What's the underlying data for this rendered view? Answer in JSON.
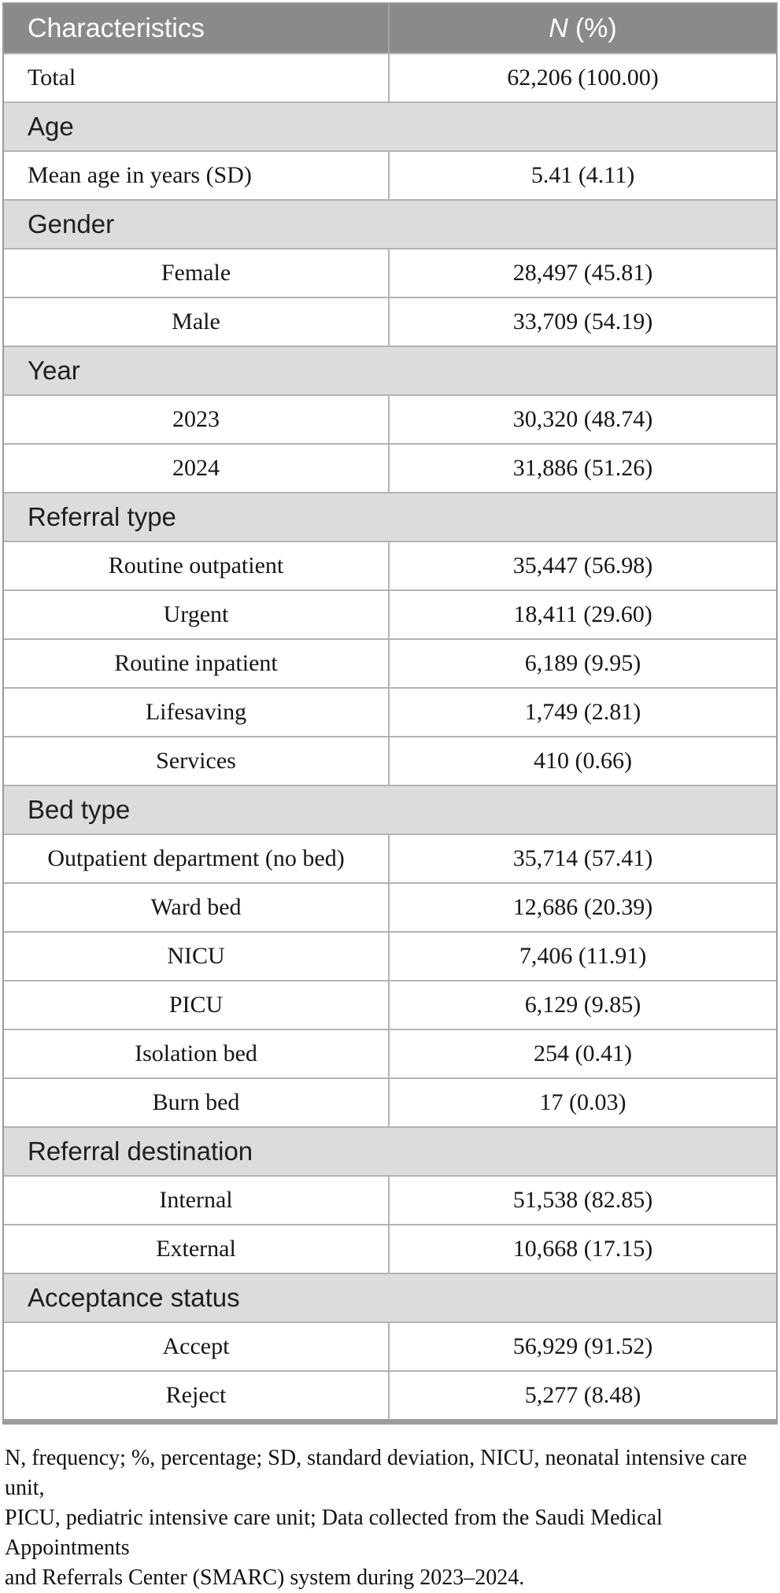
{
  "table": {
    "header": {
      "characteristics_label": "Characteristics",
      "value_label_italic": "N",
      "value_label_rest": "(%)"
    },
    "rows": [
      {
        "type": "data",
        "level": 0,
        "label": "Total",
        "value": "62,206 (100.00)"
      },
      {
        "type": "section",
        "label": "Age"
      },
      {
        "type": "data",
        "level": 0,
        "label": "Mean age in years (SD)",
        "value": "5.41 (4.11)"
      },
      {
        "type": "section",
        "label": "Gender"
      },
      {
        "type": "data",
        "level": 1,
        "label": "Female",
        "value": "28,497 (45.81)"
      },
      {
        "type": "data",
        "level": 1,
        "label": "Male",
        "value": "33,709 (54.19)"
      },
      {
        "type": "section",
        "label": "Year"
      },
      {
        "type": "data",
        "level": 1,
        "label": "2023",
        "value": "30,320 (48.74)"
      },
      {
        "type": "data",
        "level": 1,
        "label": "2024",
        "value": "31,886 (51.26)"
      },
      {
        "type": "section",
        "label": "Referral type"
      },
      {
        "type": "data",
        "level": 1,
        "label": "Routine outpatient",
        "value": "35,447 (56.98)"
      },
      {
        "type": "data",
        "level": 1,
        "label": "Urgent",
        "value": "18,411 (29.60)"
      },
      {
        "type": "data",
        "level": 1,
        "label": "Routine inpatient",
        "value": "6,189 (9.95)"
      },
      {
        "type": "data",
        "level": 1,
        "label": "Lifesaving",
        "value": "1,749 (2.81)"
      },
      {
        "type": "data",
        "level": 1,
        "label": "Services",
        "value": "410 (0.66)"
      },
      {
        "type": "section",
        "label": "Bed type"
      },
      {
        "type": "data",
        "level": 1,
        "label": "Outpatient department (no bed)",
        "value": "35,714 (57.41)"
      },
      {
        "type": "data",
        "level": 1,
        "label": "Ward bed",
        "value": "12,686 (20.39)"
      },
      {
        "type": "data",
        "level": 1,
        "label": "NICU",
        "value": "7,406 (11.91)"
      },
      {
        "type": "data",
        "level": 1,
        "label": "PICU",
        "value": "6,129 (9.85)"
      },
      {
        "type": "data",
        "level": 1,
        "label": "Isolation bed",
        "value": "254 (0.41)"
      },
      {
        "type": "data",
        "level": 1,
        "label": "Burn bed",
        "value": "17 (0.03)"
      },
      {
        "type": "section",
        "label": "Referral destination"
      },
      {
        "type": "data",
        "level": 1,
        "label": "Internal",
        "value": "51,538 (82.85)"
      },
      {
        "type": "data",
        "level": 1,
        "label": "External",
        "value": "10,668 (17.15)"
      },
      {
        "type": "section",
        "label": "Acceptance status"
      },
      {
        "type": "data",
        "level": 1,
        "label": "Accept",
        "value": "56,929 (91.52)"
      },
      {
        "type": "data",
        "level": 1,
        "label": "Reject",
        "value": "5,277 (8.48)"
      }
    ]
  },
  "footnote": {
    "lines": [
      "N, frequency; %, percentage; SD, standard deviation, NICU, neonatal intensive care unit,",
      "PICU, pediatric intensive care unit; Data collected from the Saudi Medical Appointments",
      "and Referrals Center (SMARC) system during 2023–2024."
    ],
    "full_text": "N, frequency; %, percentage; SD, standard deviation, NICU, neonatal intensive care unit, PICU, pediatric intensive care unit; Data collected from the Saudi Medical Appointments and Referrals Center (SMARC) system during 2023–2024."
  },
  "colors": {
    "header_bg": "#8a8a8a",
    "header_text": "#ffffff",
    "section_bg": "#dcdcdc",
    "row_bg": "#ffffff",
    "outer_border": "#9b9b9b",
    "row_line": "#b3b3b3",
    "header_divider": "#a3a3a3",
    "body_text": "#161616",
    "section_text": "#1e1e1e",
    "footnote_text": "#111111"
  }
}
